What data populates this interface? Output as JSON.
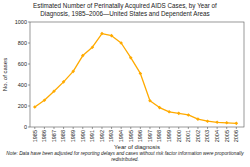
{
  "chart_data": {
    "type": "line",
    "title": "Estimated Number of Perinatally Acquired AIDS Cases, by Year of",
    "subtitle": "Diagnosis, 1985–2006—United States and Dependent Areas",
    "x_label": "Year of diagnosis",
    "y_label": "No. of cases",
    "annotations": [
      "Note: Data have been adjusted for reporting delays and cases without risk factor information were proportionally redistributed."
    ],
    "x": [
      1985,
      1986,
      1987,
      1988,
      1989,
      1990,
      1991,
      1992,
      1993,
      1994,
      1995,
      1996,
      1997,
      1998,
      1999,
      2000,
      2001,
      2002,
      2003,
      2004,
      2005,
      2006
    ],
    "values": [
      190,
      255,
      340,
      430,
      530,
      680,
      760,
      890,
      870,
      800,
      660,
      510,
      250,
      185,
      145,
      130,
      115,
      75,
      55,
      45,
      40,
      35
    ],
    "color": "#ffaa00",
    "marker": "diamond",
    "xlim": [
      1984.5,
      2006.8
    ],
    "xticks": [
      1985,
      1986,
      1987,
      1988,
      1989,
      1990,
      1991,
      1992,
      1993,
      1994,
      1995,
      1996,
      1997,
      1998,
      1999,
      2000,
      2001,
      2002,
      2003,
      2004,
      2005,
      2006
    ],
    "ylim": [
      0,
      1000
    ],
    "yticks": [
      0,
      200,
      400,
      600,
      800,
      1000
    ],
    "grid": false
  }
}
